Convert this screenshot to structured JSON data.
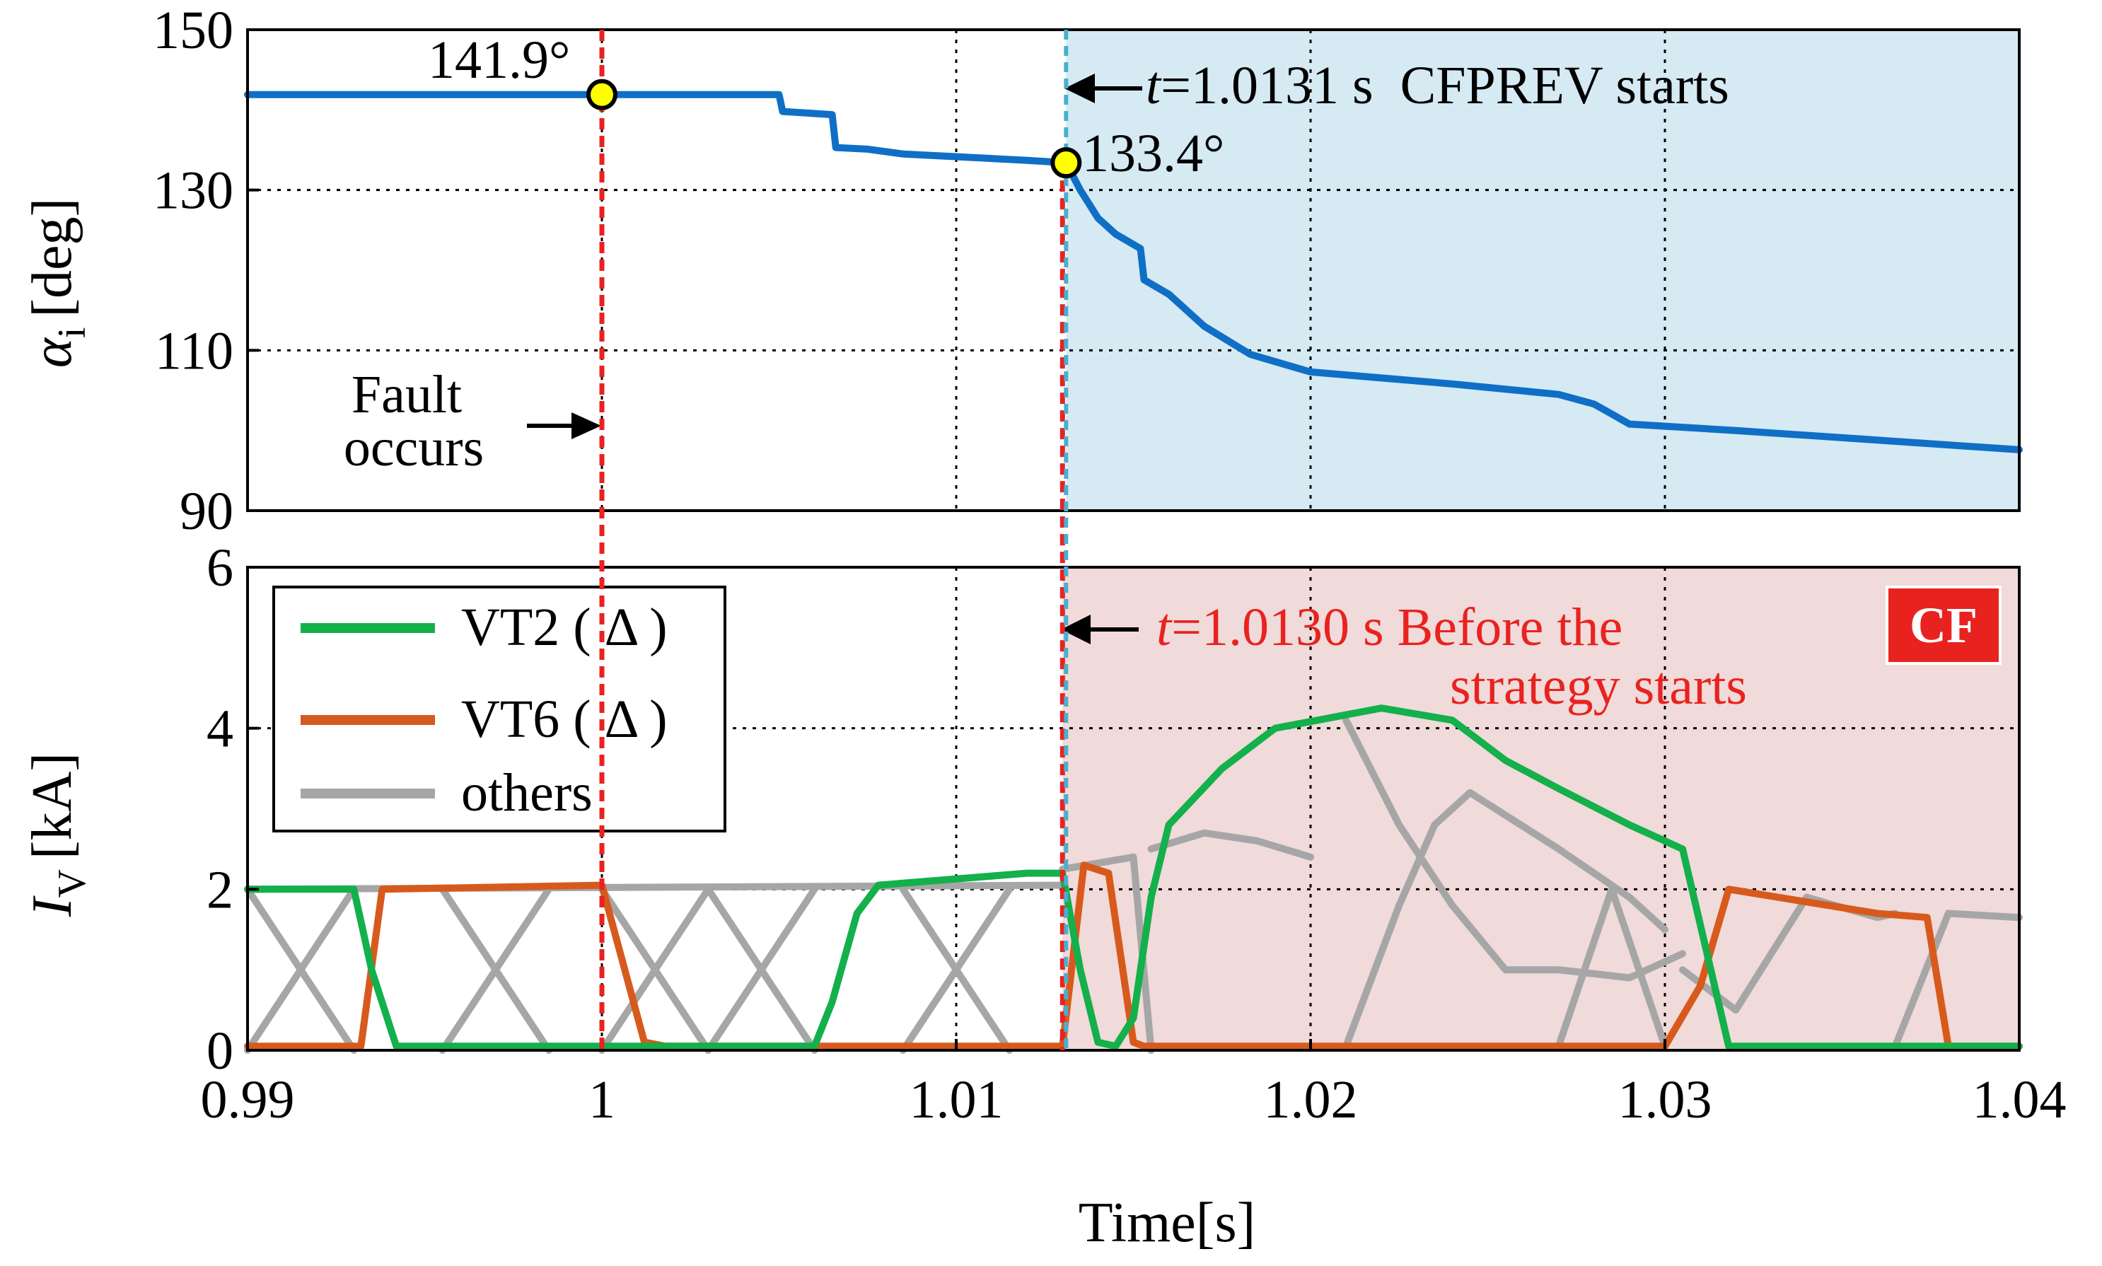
{
  "chart_data": [
    {
      "type": "line",
      "panel": "top",
      "ylabel": {
        "symbol": "α",
        "subscript": "i",
        "unit": "[deg]"
      },
      "xlim": [
        0.99,
        1.04
      ],
      "ylim": [
        90,
        150
      ],
      "yticks": [
        "150",
        "130",
        "110",
        "90"
      ],
      "ytick_values": [
        150,
        130,
        110,
        90
      ],
      "xtick_values": [
        0.99,
        1.0,
        1.01,
        1.02,
        1.03,
        1.04
      ],
      "grid": "dotted",
      "shaded_region": {
        "x": [
          1.0131,
          1.04
        ],
        "color": "#d5eaf2"
      },
      "series": [
        {
          "color": "#0f6fc6",
          "x": [
            0.99,
            0.995,
            1.0,
            1.005,
            1.0051,
            1.0065,
            1.0066,
            1.0075,
            1.0085,
            1.012,
            1.0131,
            1.0135,
            1.014,
            1.0145,
            1.0152,
            1.0153,
            1.016,
            1.017,
            1.0183,
            1.02,
            1.024,
            1.027,
            1.028,
            1.029,
            1.032,
            1.036,
            1.04
          ],
          "y": [
            141.9,
            141.9,
            141.9,
            141.9,
            139.8,
            139.4,
            135.3,
            135.1,
            134.5,
            133.7,
            133.4,
            130,
            126.5,
            124.5,
            122.7,
            118.8,
            117,
            113,
            109.5,
            107.3,
            105.8,
            104.5,
            103.3,
            100.8,
            100,
            98.8,
            97.6
          ]
        }
      ],
      "markers": [
        {
          "x": 1.0,
          "y": 141.9,
          "label": "141.9°"
        },
        {
          "x": 1.0131,
          "y": 133.4,
          "label": "133.4°"
        }
      ],
      "annotations": {
        "fault_line1": "Fault",
        "fault_line2": "occurs",
        "t_var": "t",
        "cfprev_text": "=1.0131 s  CFPREV starts"
      }
    },
    {
      "type": "line",
      "panel": "bottom",
      "ylabel": {
        "symbol": "I",
        "subscript": "V",
        "unit": "[kA]"
      },
      "xlabel": "Time[s]",
      "xlim": [
        0.99,
        1.04
      ],
      "ylim": [
        0,
        6
      ],
      "xticks": [
        "0.99",
        "1",
        "1.01",
        "1.02",
        "1.03",
        "1.04"
      ],
      "xtick_values": [
        0.99,
        1.0,
        1.01,
        1.02,
        1.03,
        1.04
      ],
      "yticks": [
        "6",
        "4",
        "2",
        "0"
      ],
      "ytick_values": [
        6,
        4,
        2,
        0
      ],
      "grid": "dotted",
      "shaded_region": {
        "x": [
          1.013,
          1.04
        ],
        "color": "#f0dada"
      },
      "badge": {
        "text": "CF",
        "color": "#e8231f"
      },
      "annotations": {
        "t_var": "t",
        "line1": "=1.0130 s Before the",
        "line2": "strategy starts"
      },
      "legend": {
        "position": "top-left",
        "entries": [
          "VT2 ( Δ )",
          "VT6 ( Δ )",
          "others"
        ]
      },
      "series": [
        {
          "name": "VT2 ( Δ )",
          "color": "#13b04b",
          "x": [
            0.99,
            0.993,
            0.9935,
            0.9942,
            1.0,
            1.006,
            1.0065,
            1.0072,
            1.0078,
            1.012,
            1.013,
            1.0135,
            1.014,
            1.0145,
            1.015,
            1.0155,
            1.016,
            1.0175,
            1.019,
            1.022,
            1.024,
            1.0255,
            1.027,
            1.029,
            1.0305,
            1.0318,
            1.035,
            1.04
          ],
          "y": [
            2.0,
            2.0,
            1.0,
            0.05,
            0.05,
            0.05,
            0.6,
            1.7,
            2.05,
            2.2,
            2.2,
            1.0,
            0.1,
            0.05,
            0.4,
            1.9,
            2.8,
            3.5,
            4.0,
            4.25,
            4.1,
            3.6,
            3.25,
            2.8,
            2.5,
            0.05,
            0.05,
            0.05
          ]
        },
        {
          "name": "VT6 ( Δ )",
          "color": "#d75a1c",
          "x": [
            0.99,
            0.9932,
            0.9938,
            1.0,
            1.0012,
            1.0018,
            1.013,
            1.0136,
            1.0143,
            1.015,
            1.0153,
            1.03,
            1.031,
            1.0318,
            1.036,
            1.0374,
            1.038,
            1.04
          ],
          "y": [
            0.05,
            0.05,
            2.0,
            2.05,
            0.1,
            0.05,
            0.05,
            2.3,
            2.2,
            0.1,
            0.05,
            0.05,
            0.8,
            2.0,
            1.7,
            1.65,
            0.05,
            0.05
          ]
        },
        {
          "name": "others",
          "color": "#a6a6a6",
          "segments": [
            {
              "x": [
                0.99,
                1.013
              ],
              "y": [
                2.0,
                2.05
              ]
            },
            {
              "x": [
                0.99,
                0.993
              ],
              "y": [
                2.0,
                0.0
              ]
            },
            {
              "x": [
                0.99,
                0.993
              ],
              "y": [
                0.0,
                2.0
              ]
            },
            {
              "x": [
                0.9955,
                0.9985
              ],
              "y": [
                2.0,
                0.0
              ]
            },
            {
              "x": [
                0.9955,
                0.9985
              ],
              "y": [
                0.0,
                2.0
              ]
            },
            {
              "x": [
                1.0,
                1.003
              ],
              "y": [
                2.0,
                0.0
              ]
            },
            {
              "x": [
                1.0,
                1.003
              ],
              "y": [
                0.0,
                2.0
              ]
            },
            {
              "x": [
                1.003,
                1.006
              ],
              "y": [
                2.0,
                0.0
              ]
            },
            {
              "x": [
                1.003,
                1.006
              ],
              "y": [
                0.0,
                2.0
              ]
            },
            {
              "x": [
                1.0085,
                1.0115
              ],
              "y": [
                2.0,
                0.0
              ]
            },
            {
              "x": [
                1.0085,
                1.0115
              ],
              "y": [
                0.0,
                2.0
              ]
            },
            {
              "x": [
                1.013,
                1.015
              ],
              "y": [
                2.25,
                2.4
              ]
            },
            {
              "x": [
                1.015,
                1.0155
              ],
              "y": [
                2.4,
                0.0
              ]
            },
            {
              "x": [
                1.0155,
                1.017,
                1.0185,
                1.02
              ],
              "y": [
                2.5,
                2.7,
                2.6,
                2.4
              ]
            },
            {
              "x": [
                1.021,
                1.0225,
                1.0235,
                1.0245,
                1.027,
                1.029,
                1.03
              ],
              "y": [
                0.05,
                1.8,
                2.8,
                3.2,
                2.5,
                1.9,
                1.5
              ]
            },
            {
              "x": [
                1.021,
                1.0225,
                1.024,
                1.0255,
                1.027,
                1.029,
                1.0305
              ],
              "y": [
                4.1,
                2.8,
                1.8,
                1.0,
                1.0,
                0.9,
                1.2
              ]
            },
            {
              "x": [
                1.027,
                1.0285,
                1.03
              ],
              "y": [
                0.05,
                2.0,
                0.05
              ]
            },
            {
              "x": [
                1.0305,
                1.032,
                1.034,
                1.036,
                1.0365
              ],
              "y": [
                1.0,
                0.5,
                1.9,
                1.65,
                1.7
              ]
            },
            {
              "x": [
                1.0365,
                1.038,
                1.04
              ],
              "y": [
                0.05,
                1.7,
                1.65
              ]
            }
          ]
        }
      ]
    }
  ]
}
